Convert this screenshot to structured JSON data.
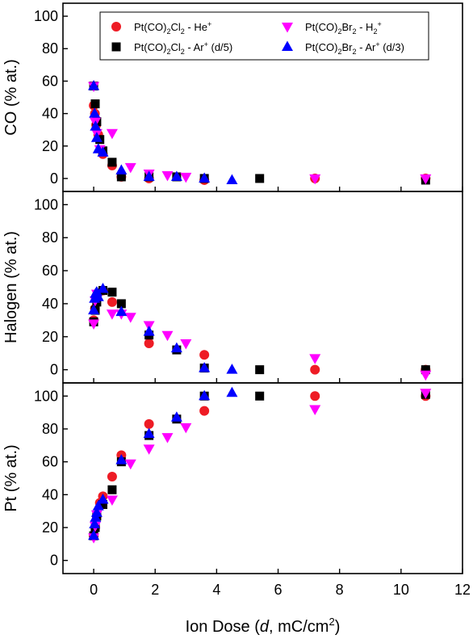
{
  "chart_data": {
    "type": "scatter",
    "xlabel_parts": [
      "Ion Dose (",
      "d",
      ", mC/cm",
      "2",
      ")"
    ],
    "x_ticks": [
      "0",
      "2",
      "4",
      "6",
      "8",
      "10",
      "12"
    ],
    "xlim": [
      -1,
      12
    ],
    "y_ticks": [
      "0",
      "20",
      "40",
      "60",
      "80",
      "100"
    ],
    "legend_position": "top",
    "legend": [
      {
        "series": "he",
        "parts": [
          "Pt(CO)",
          "2",
          "Cl",
          "2",
          " - He",
          "+"
        ],
        "kinds": [
          "t",
          "sub",
          "t",
          "sub",
          "t",
          "sup"
        ]
      },
      {
        "series": "h2",
        "parts": [
          "Pt(CO)",
          "2",
          "Br",
          "2",
          " - H",
          "2",
          "+"
        ],
        "kinds": [
          "t",
          "sub",
          "t",
          "sub",
          "t",
          "sub",
          "sup"
        ]
      },
      {
        "series": "ar5",
        "parts": [
          "Pt(CO)",
          "2",
          "Cl",
          "2",
          " - Ar",
          "+",
          " (d/5)"
        ],
        "kinds": [
          "t",
          "sub",
          "t",
          "sub",
          "t",
          "sup",
          "t"
        ]
      },
      {
        "series": "ar3",
        "parts": [
          "Pt(CO)",
          "2",
          "Br",
          "2",
          " - Ar",
          "+",
          " (d/3)"
        ],
        "kinds": [
          "t",
          "sub",
          "t",
          "sub",
          "t",
          "sup",
          "t"
        ]
      }
    ],
    "series_style": {
      "he": {
        "color": "#ee1c25",
        "marker": "circle"
      },
      "h2": {
        "color": "#ff00ff",
        "marker": "triangle-down"
      },
      "ar5": {
        "color": "#000000",
        "marker": "square"
      },
      "ar3": {
        "color": "#0000ff",
        "marker": "triangle-up"
      }
    },
    "panels": [
      {
        "id": "co",
        "ylabel": "CO (% at.)",
        "ylim": [
          -8,
          108
        ],
        "series": {
          "he": [
            [
              0,
              45
            ],
            [
              0.04,
              40
            ],
            [
              0.08,
              33
            ],
            [
              0.15,
              27
            ],
            [
              0.3,
              15
            ],
            [
              0.6,
              8
            ],
            [
              0.9,
              1
            ],
            [
              1.8,
              0
            ],
            [
              3.6,
              -1
            ],
            [
              7.2,
              0
            ],
            [
              10.8,
              0
            ]
          ],
          "h2": [
            [
              0,
              57
            ],
            [
              0.05,
              35
            ],
            [
              0.1,
              28
            ],
            [
              0.2,
              18
            ],
            [
              0.6,
              28
            ],
            [
              1.2,
              7
            ],
            [
              1.8,
              3
            ],
            [
              2.4,
              2
            ],
            [
              3.0,
              1
            ],
            [
              7.2,
              0
            ],
            [
              10.8,
              0
            ]
          ],
          "ar5": [
            [
              0,
              57
            ],
            [
              0.05,
              46
            ],
            [
              0.1,
              35
            ],
            [
              0.2,
              24
            ],
            [
              0.3,
              17
            ],
            [
              0.6,
              10
            ],
            [
              0.9,
              1
            ],
            [
              1.8,
              1
            ],
            [
              2.7,
              1
            ],
            [
              3.6,
              0
            ],
            [
              5.4,
              0
            ],
            [
              10.8,
              -1
            ]
          ],
          "ar3": [
            [
              0,
              57
            ],
            [
              0.03,
              40
            ],
            [
              0.06,
              32
            ],
            [
              0.1,
              25
            ],
            [
              0.15,
              18
            ],
            [
              0.3,
              16
            ],
            [
              0.9,
              5
            ],
            [
              1.8,
              1
            ],
            [
              2.7,
              1
            ],
            [
              3.6,
              0
            ],
            [
              4.5,
              -1
            ]
          ]
        }
      },
      {
        "id": "halogen",
        "ylabel": "Halogen (% at.)",
        "ylim": [
          -8,
          108
        ],
        "series": {
          "he": [
            [
              0,
              30
            ],
            [
              0.04,
              37
            ],
            [
              0.1,
              45
            ],
            [
              0.3,
              48
            ],
            [
              0.6,
              41
            ],
            [
              1.8,
              16
            ],
            [
              3.6,
              9
            ],
            [
              7.2,
              0
            ],
            [
              10.8,
              0
            ]
          ],
          "h2": [
            [
              0,
              28
            ],
            [
              0.05,
              42
            ],
            [
              0.1,
              46
            ],
            [
              0.6,
              34
            ],
            [
              0.9,
              34
            ],
            [
              1.2,
              32
            ],
            [
              1.8,
              27
            ],
            [
              2.4,
              21
            ],
            [
              3.0,
              16
            ],
            [
              7.2,
              7
            ],
            [
              10.8,
              -3
            ]
          ],
          "ar5": [
            [
              0,
              29
            ],
            [
              0.05,
              36
            ],
            [
              0.1,
              41
            ],
            [
              0.3,
              48
            ],
            [
              0.6,
              47
            ],
            [
              0.9,
              40
            ],
            [
              1.8,
              21
            ],
            [
              2.7,
              12
            ],
            [
              3.6,
              1
            ],
            [
              5.4,
              0
            ],
            [
              10.8,
              0
            ]
          ],
          "ar3": [
            [
              0,
              36
            ],
            [
              0.03,
              43
            ],
            [
              0.06,
              46
            ],
            [
              0.1,
              47
            ],
            [
              0.15,
              44
            ],
            [
              0.3,
              49
            ],
            [
              0.9,
              35
            ],
            [
              1.8,
              23
            ],
            [
              2.7,
              13
            ],
            [
              3.6,
              1
            ],
            [
              4.5,
              0
            ]
          ]
        }
      },
      {
        "id": "pt",
        "ylabel": "Pt (% at.)",
        "ylim": [
          -8,
          108
        ],
        "series": {
          "he": [
            [
              0,
              15
            ],
            [
              0.05,
              20
            ],
            [
              0.1,
              27
            ],
            [
              0.2,
              35
            ],
            [
              0.3,
              39
            ],
            [
              0.6,
              51
            ],
            [
              0.9,
              64
            ],
            [
              1.8,
              83
            ],
            [
              3.6,
              91
            ],
            [
              7.2,
              100
            ],
            [
              10.8,
              100
            ]
          ],
          "h2": [
            [
              0,
              14
            ],
            [
              0.05,
              21
            ],
            [
              0.1,
              28
            ],
            [
              0.6,
              37
            ],
            [
              1.2,
              59
            ],
            [
              1.8,
              68
            ],
            [
              2.4,
              75
            ],
            [
              3.0,
              81
            ],
            [
              7.2,
              92
            ],
            [
              10.8,
              102
            ]
          ],
          "ar5": [
            [
              0,
              15
            ],
            [
              0.05,
              20
            ],
            [
              0.1,
              27
            ],
            [
              0.3,
              34
            ],
            [
              0.6,
              43
            ],
            [
              0.9,
              60
            ],
            [
              1.8,
              76
            ],
            [
              2.7,
              86
            ],
            [
              3.6,
              100
            ],
            [
              5.4,
              100
            ],
            [
              10.8,
              101
            ]
          ],
          "ar3": [
            [
              0,
              15
            ],
            [
              0.03,
              22
            ],
            [
              0.06,
              26
            ],
            [
              0.1,
              29
            ],
            [
              0.15,
              33
            ],
            [
              0.3,
              37
            ],
            [
              0.9,
              61
            ],
            [
              1.8,
              77
            ],
            [
              2.7,
              87
            ],
            [
              3.6,
              100
            ],
            [
              4.5,
              102
            ]
          ]
        }
      }
    ]
  }
}
